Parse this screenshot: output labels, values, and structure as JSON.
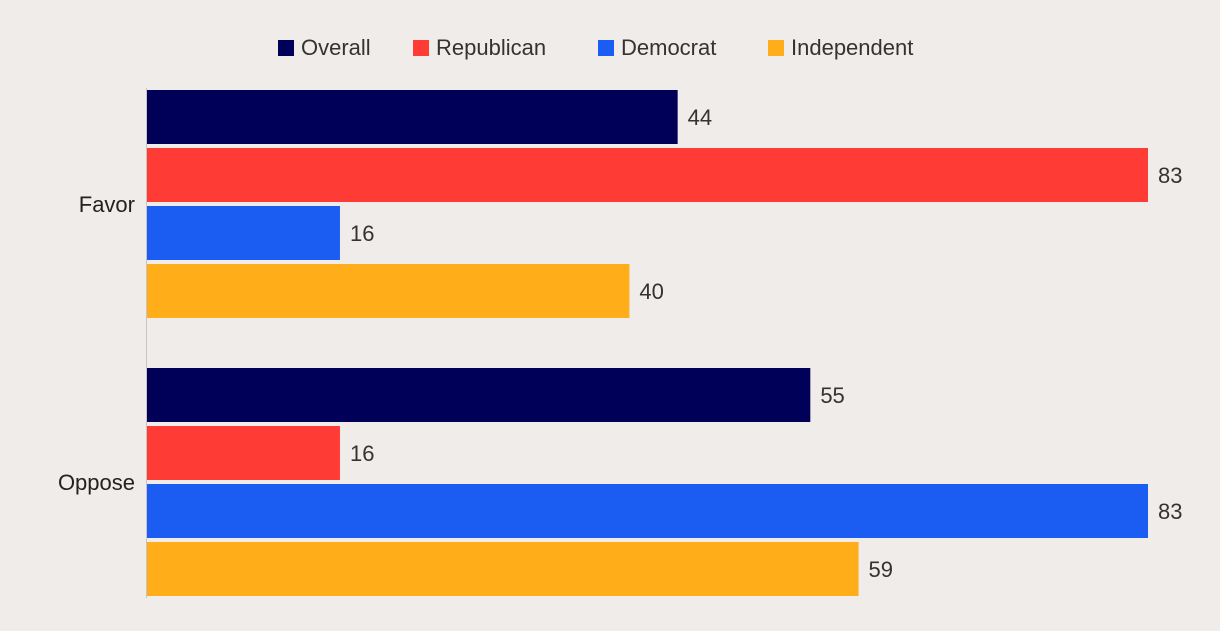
{
  "chart_data": {
    "type": "bar",
    "orientation": "horizontal",
    "title": "",
    "xlabel": "",
    "ylabel": "",
    "categories": [
      "Favor",
      "Oppose"
    ],
    "series": [
      {
        "name": "Overall",
        "color": "#000058",
        "values": [
          44,
          55
        ]
      },
      {
        "name": "Republican",
        "color": "#ff3b36",
        "values": [
          83,
          16
        ]
      },
      {
        "name": "Democrat",
        "color": "#1b5df2",
        "values": [
          16,
          83
        ]
      },
      {
        "name": "Independent",
        "color": "#ffae1a",
        "values": [
          40,
          59
        ]
      }
    ],
    "xlim": [
      0,
      83
    ],
    "grid": false,
    "legend_position": "top-center",
    "data_labels": true
  }
}
